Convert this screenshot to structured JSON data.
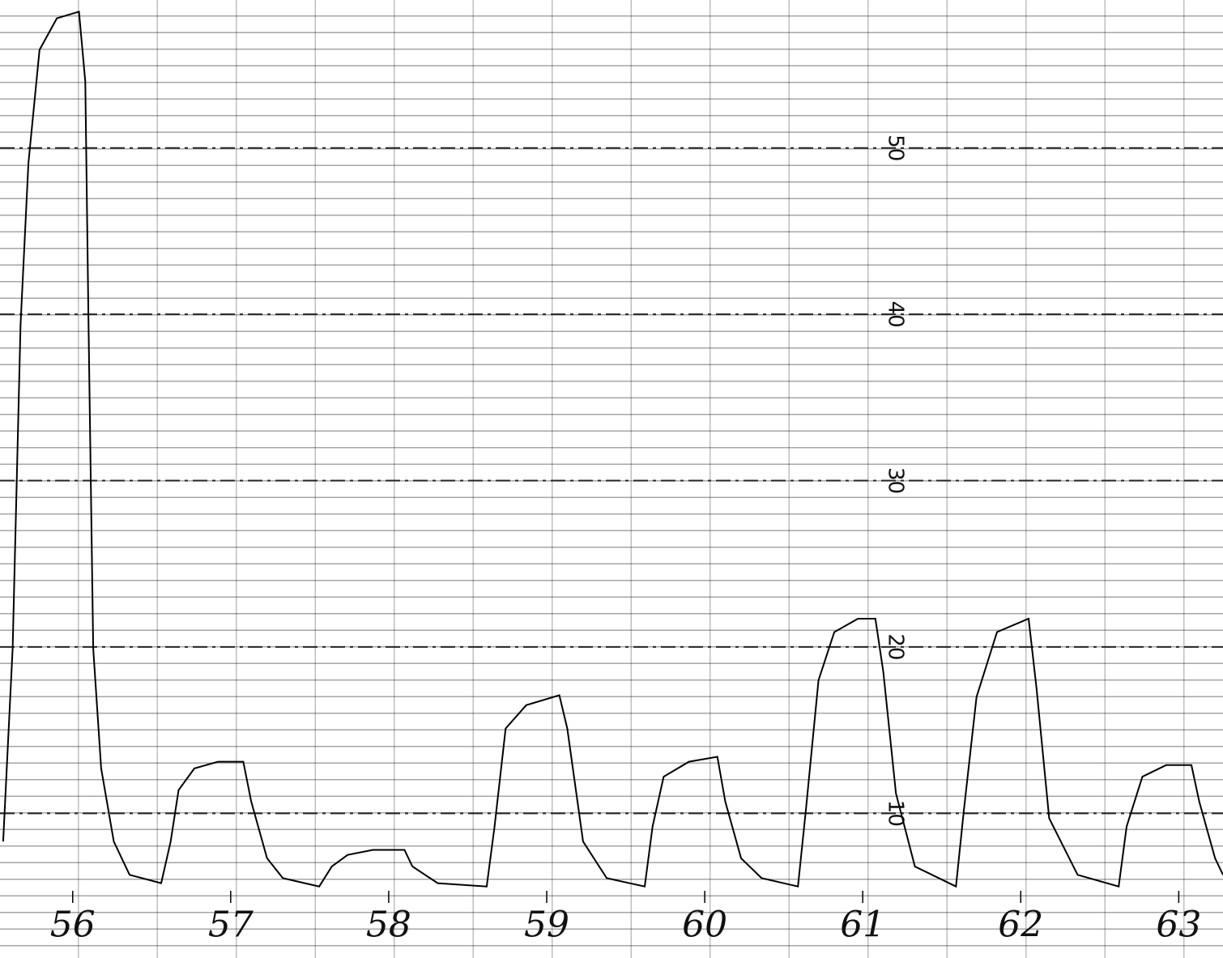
{
  "chart_data": {
    "type": "line",
    "x": [
      55.56,
      55.62,
      55.67,
      55.72,
      55.79,
      55.9,
      56.04,
      56.08,
      56.1,
      56.13,
      56.18,
      56.26,
      56.36,
      56.56,
      56.62,
      56.67,
      56.77,
      56.92,
      57.08,
      57.13,
      57.23,
      57.33,
      57.56,
      57.64,
      57.74,
      57.9,
      58.1,
      58.15,
      58.31,
      58.62,
      58.67,
      58.74,
      58.87,
      59.08,
      59.13,
      59.23,
      59.38,
      59.62,
      59.67,
      59.74,
      59.9,
      60.08,
      60.13,
      60.23,
      60.36,
      60.59,
      60.64,
      60.72,
      60.82,
      60.97,
      61.08,
      61.13,
      61.21,
      61.33,
      61.59,
      61.64,
      61.72,
      61.85,
      62.05,
      62.1,
      62.18,
      62.36,
      62.62,
      62.67,
      62.77,
      62.92,
      63.08,
      63.13,
      63.23,
      63.28
    ],
    "series": [
      {
        "color": "#000000",
        "values": [
          8.3,
          19.9,
          39.4,
          49.1,
          55.9,
          57.8,
          58.2,
          54.0,
          39.4,
          19.9,
          12.7,
          8.3,
          6.3,
          5.8,
          8.3,
          11.4,
          12.7,
          13.1,
          13.1,
          10.7,
          7.3,
          6.1,
          5.6,
          6.8,
          7.5,
          7.8,
          7.8,
          6.8,
          5.8,
          5.6,
          9.2,
          15.1,
          16.5,
          17.1,
          15.1,
          8.3,
          6.1,
          5.6,
          9.2,
          12.2,
          13.1,
          13.4,
          10.7,
          7.3,
          6.1,
          5.6,
          10.2,
          18.0,
          20.9,
          21.7,
          21.7,
          18.5,
          11.2,
          6.8,
          5.6,
          10.2,
          17.0,
          20.9,
          21.7,
          17.5,
          9.7,
          6.3,
          5.6,
          9.2,
          12.2,
          12.9,
          12.9,
          10.7,
          7.3,
          6.3
        ]
      }
    ],
    "xlim": [
      55.54,
      63.28
    ],
    "xticks": [
      56,
      57,
      58,
      59,
      60,
      61,
      62,
      63
    ],
    "ylim": [
      1.3,
      58.9
    ],
    "yticks": [
      10,
      20,
      30,
      40,
      50
    ],
    "grid": true
  }
}
